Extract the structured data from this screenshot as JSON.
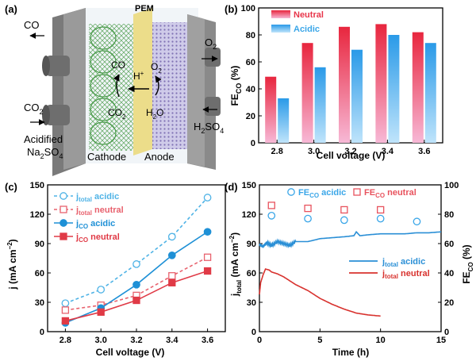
{
  "panels": {
    "a": {
      "tag": "(a)",
      "labels": {
        "pem": "PEM",
        "co_out": "CO",
        "o2_out": "O",
        "o2_out_sub": "2",
        "co2_in": "CO",
        "co2_in_sub": "2",
        "acidified1": "Acidified",
        "acidified2": "Na",
        "acidified2_sub1": "2",
        "acidified2_mid": "SO",
        "acidified2_sub2": "4",
        "h2so4": "H",
        "h2so4_sub1": "2",
        "h2so4_mid": "SO",
        "h2so4_sub2": "4",
        "co_inner": "CO",
        "hplus": "H",
        "hplus_sup": "+",
        "o2_inner": "O",
        "o2_inner_sub": "2",
        "co2_inner": "CO",
        "co2_inner_sub": "2",
        "h2o": "H",
        "h2o_sub": "2",
        "h2o_end": "O",
        "cathode": "Cathode",
        "anode": "Anode"
      },
      "colors": {
        "pem": "#e9d466",
        "pem_text": "#b89a1c",
        "cathode": "#4a9b4a",
        "anode": "#7a6ab0",
        "housing": "#8d8d8d"
      }
    }
  },
  "chart_data": [
    {
      "id": "b",
      "tag": "(b)",
      "type": "bar",
      "categories": [
        "2.8",
        "3.0",
        "3.2",
        "3.4",
        "3.6"
      ],
      "series": [
        {
          "name": "Neutral",
          "values": [
            49,
            74,
            86,
            88,
            82
          ],
          "color": "#e8354a"
        },
        {
          "name": "Acidic",
          "values": [
            33,
            56,
            69,
            80,
            74
          ],
          "color": "#3aa6e8"
        }
      ],
      "xlabel": "Cell voltage (V)",
      "ylabel": "FE",
      "ylabel_sub": "CO",
      "ylabel_end": " (%)",
      "ylim": [
        0,
        100
      ],
      "yticks": [
        "0",
        "20",
        "40",
        "60",
        "80",
        "100"
      ],
      "legend": "top-left"
    },
    {
      "id": "c",
      "tag": "(c)",
      "type": "line",
      "x": [
        2.8,
        3.0,
        3.2,
        3.4,
        3.6
      ],
      "xticks": [
        "2.8",
        "3.0",
        "3.2",
        "3.4",
        "3.6"
      ],
      "series": [
        {
          "name": "j",
          "name_sub": "total",
          "name_end": " acidic",
          "values": [
            29,
            43,
            69,
            97,
            137
          ],
          "color": "#4fb3e6",
          "style": "dashed",
          "marker": "circle-open"
        },
        {
          "name": "j",
          "name_sub": "total",
          "name_end": " neutral",
          "values": [
            22,
            27,
            37,
            57,
            76
          ],
          "color": "#e8626e",
          "style": "dashed",
          "marker": "square-open"
        },
        {
          "name": "j",
          "name_sub": "CO",
          "name_end": " acidic",
          "values": [
            9,
            24,
            48,
            78,
            102
          ],
          "color": "#1e90d6",
          "style": "solid",
          "marker": "circle-filled"
        },
        {
          "name": "j",
          "name_sub": "CO",
          "name_end": " neutral",
          "values": [
            11,
            20,
            32,
            50,
            62
          ],
          "color": "#e03a46",
          "style": "solid",
          "marker": "square-filled"
        }
      ],
      "xlabel": "Cell voltage (V)",
      "ylabel": "j (mA cm",
      "ylabel_sup": "−2",
      "ylabel_end": ")",
      "xlim": [
        2.7,
        3.7
      ],
      "ylim": [
        0,
        150
      ],
      "yticks": [
        "0",
        "30",
        "60",
        "90",
        "120",
        "150"
      ],
      "legend": "top-left"
    },
    {
      "id": "d",
      "tag": "(d)",
      "type": "line",
      "xlabel": "Time (h)",
      "xlim": [
        0,
        15
      ],
      "xticks": [
        "0",
        "5",
        "10",
        "15"
      ],
      "ylabel_left": "j",
      "ylabel_left_sub": "total",
      "ylabel_left_end": " (mA cm",
      "ylabel_left_sup": "−2",
      "ylabel_left_close": ")",
      "ylim_left": [
        0,
        150
      ],
      "yticks_left": [
        "0",
        "30",
        "60",
        "90",
        "120",
        "150"
      ],
      "ylabel_right": "FE",
      "ylabel_right_sub": "CO",
      "ylabel_right_end": " (%)",
      "ylim_right": [
        0,
        100
      ],
      "yticks_right": [
        "0",
        "20",
        "40",
        "60",
        "80",
        "100"
      ],
      "lines": [
        {
          "name": "j",
          "name_sub": "total",
          "name_end": " acidic",
          "color": "#2a8fd6",
          "axis": "left",
          "x": [
            0,
            0.3,
            0.6,
            1.0,
            1.5,
            2.0,
            2.5,
            3.0,
            4.0,
            5.0,
            6.0,
            7.0,
            7.8,
            8.0,
            8.3,
            9.0,
            10.0,
            11.0,
            12.0,
            13.0,
            14.0,
            15.0
          ],
          "y": [
            89,
            87,
            91,
            88,
            92,
            90,
            88,
            92,
            92,
            95,
            96,
            97,
            98,
            102,
            98,
            99,
            100,
            100,
            100,
            101,
            101,
            102
          ]
        },
        {
          "name": "j",
          "name_sub": "total",
          "name_end": " neutral",
          "color": "#d8322e",
          "axis": "left",
          "x": [
            0,
            0.1,
            0.3,
            0.5,
            0.8,
            1.0,
            1.5,
            2.0,
            2.5,
            3.0,
            4.0,
            5.0,
            6.0,
            7.0,
            8.0,
            9.0,
            10.0
          ],
          "y": [
            38,
            50,
            58,
            64,
            63,
            61,
            59,
            56,
            52,
            48,
            42,
            34,
            28,
            23,
            19,
            17,
            16
          ]
        }
      ],
      "scatter": [
        {
          "name": "FE",
          "name_sub": "CO",
          "name_end": " acidic",
          "color": "#3aa6e8",
          "marker": "circle-open",
          "axis": "right",
          "x": [
            1,
            4,
            7,
            10,
            13
          ],
          "y": [
            79,
            77,
            76,
            77,
            75
          ]
        },
        {
          "name": "FE",
          "name_sub": "CO",
          "name_end": " neutral",
          "color": "#e8535e",
          "marker": "square-open",
          "axis": "right",
          "x": [
            1,
            4,
            7,
            10
          ],
          "y": [
            86,
            84,
            83,
            83
          ]
        }
      ],
      "legend": "top and bottom-right"
    }
  ]
}
